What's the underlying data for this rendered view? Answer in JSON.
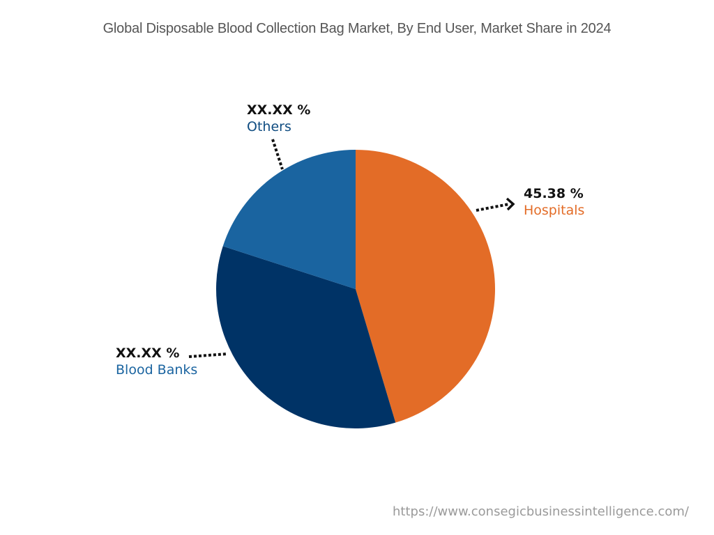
{
  "chart_data": {
    "type": "pie",
    "title": "Global Disposable Blood Collection Bag Market, By End User, Market Share in 2024",
    "slices": [
      {
        "label": "Hospitals",
        "value": 45.38,
        "display": "45.38 %",
        "color": "#E36C27"
      },
      {
        "label": "Blood Banks",
        "value": 34.6,
        "display": "XX.XX %",
        "color": "#003366"
      },
      {
        "label": "Others",
        "value": 20.02,
        "display": "XX.XX %",
        "color": "#1A64A0"
      }
    ],
    "start_angle_deg": 0,
    "direction": "clockwise",
    "legend": "none"
  },
  "title": "Global Disposable Blood Collection Bag Market, By End User, Market Share in 2024",
  "labels": {
    "hospitals": {
      "value": "45.38 %",
      "name": "Hospitals",
      "color": "#E36C27"
    },
    "blood_banks": {
      "value": "XX.XX %",
      "name": "Blood Banks",
      "color": "#1A64A0"
    },
    "others": {
      "value": "XX.XX %",
      "name": "Others",
      "color": "#0F4C81"
    }
  },
  "source": "https://www.consegicbusinessintelligence.com/"
}
